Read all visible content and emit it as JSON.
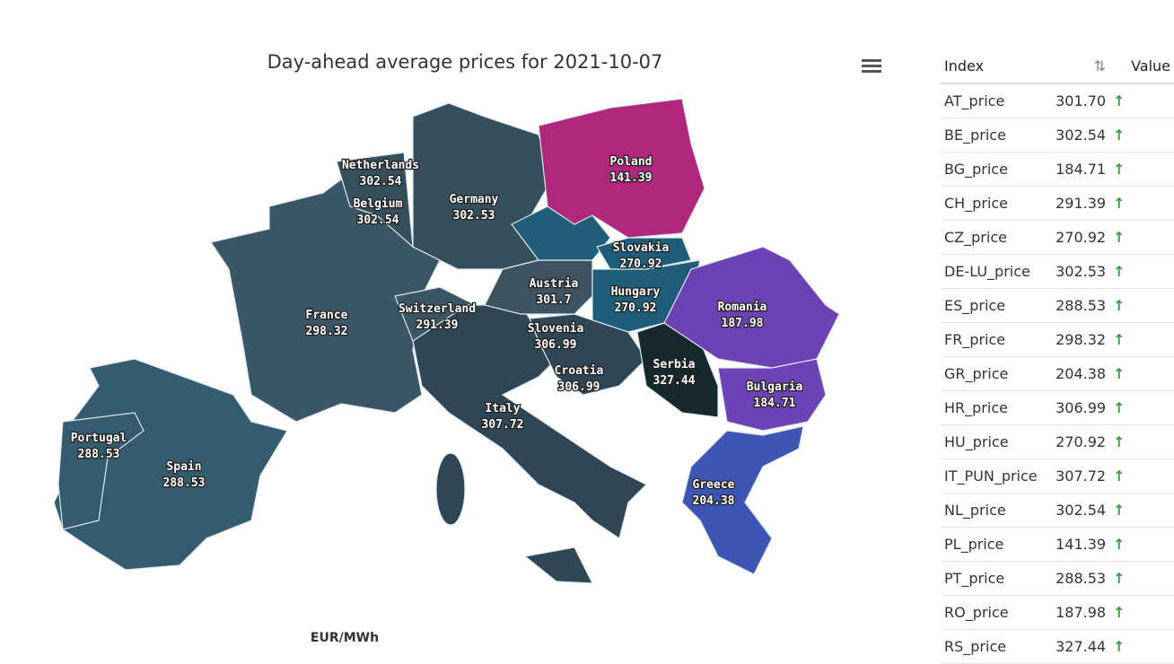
{
  "title": "Day-ahead average prices for 2021-10-07",
  "unit_label": "EUR/MWh",
  "regions": [
    {
      "name": "Poland",
      "value": "141.39"
    },
    {
      "name": "Netherlands",
      "value": "302.54"
    },
    {
      "name": "Belgium",
      "value": "302.54"
    },
    {
      "name": "Germany",
      "value": "302.53"
    },
    {
      "name": "France",
      "value": "298.32"
    },
    {
      "name": "Switzerland",
      "value": "291.39"
    },
    {
      "name": "Slovakia",
      "value": "270.92"
    },
    {
      "name": "Austria",
      "value": "301.7"
    },
    {
      "name": "Hungary",
      "value": "270.92"
    },
    {
      "name": "Romania",
      "value": "187.98"
    },
    {
      "name": "Slovenia",
      "value": "306.99"
    },
    {
      "name": "Croatia",
      "value": "306.99"
    },
    {
      "name": "Serbia",
      "value": "327.44"
    },
    {
      "name": "Bulgaria",
      "value": "184.71"
    },
    {
      "name": "Italy",
      "value": "307.72"
    },
    {
      "name": "Portugal",
      "value": "288.53"
    },
    {
      "name": "Spain",
      "value": "288.53"
    },
    {
      "name": "Greece",
      "value": "204.38"
    }
  ],
  "table": {
    "header": [
      "Index",
      "Value"
    ],
    "rows": [
      [
        "AT_price",
        "301.70"
      ],
      [
        "BE_price",
        "302.54"
      ],
      [
        "BG_price",
        "184.71"
      ],
      [
        "CH_price",
        "291.39"
      ],
      [
        "CZ_price",
        "270.92"
      ],
      [
        "DE-LU_price",
        "302.53"
      ],
      [
        "ES_price",
        "288.53"
      ],
      [
        "FR_price",
        "298.32"
      ],
      [
        "GR_price",
        "204.38"
      ],
      [
        "HR_price",
        "306.99"
      ],
      [
        "HU_price",
        "270.92"
      ],
      [
        "IT_PUN_price",
        "307.72"
      ],
      [
        "NL_price",
        "302.54"
      ],
      [
        "PL_price",
        "141.39"
      ],
      [
        "PT_price",
        "288.53"
      ],
      [
        "RO_price",
        "187.98"
      ],
      [
        "RS_price",
        "327.44"
      ]
    ]
  }
}
